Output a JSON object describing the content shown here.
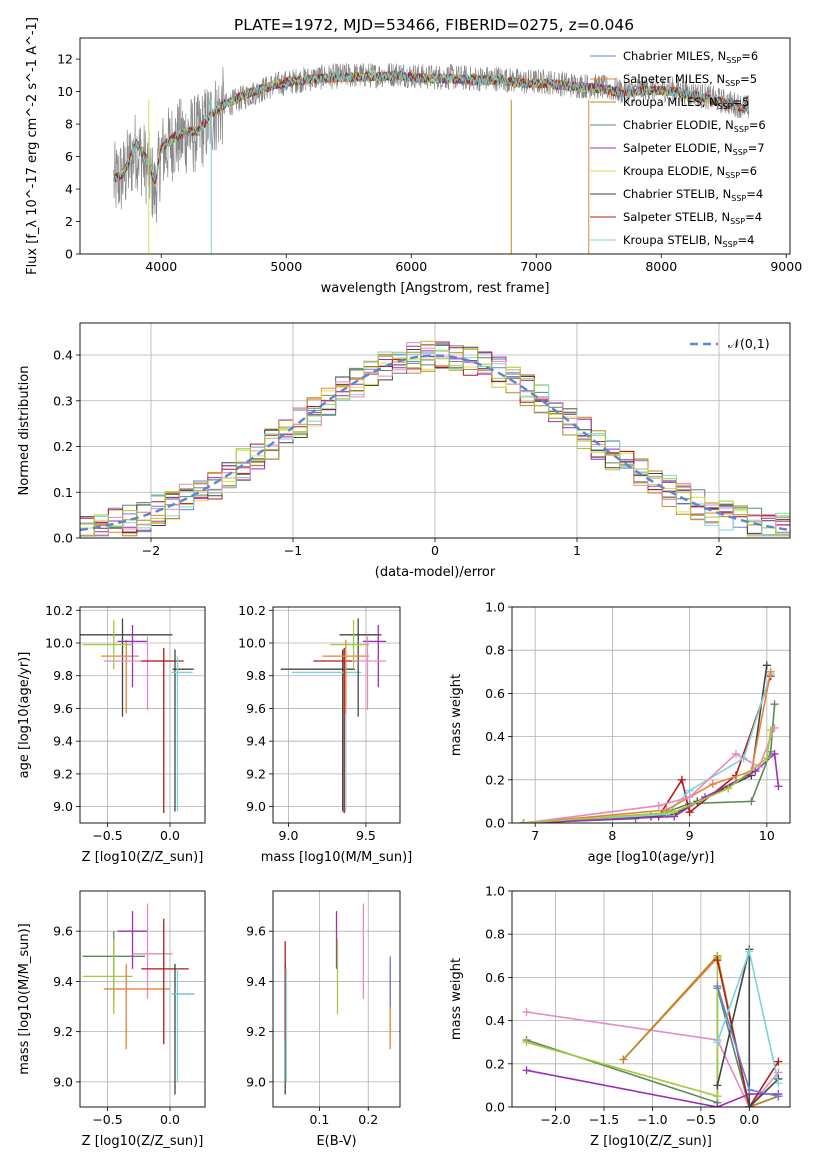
{
  "figure": {
    "title": "PLATE=1972, MJD=53466, FIBERID=0275, z=0.046"
  },
  "colors": [
    "#6a7fdc",
    "#e8823a",
    "#b88a1f",
    "#5c8a5e",
    "#9b2fb7",
    "#d6e04c",
    "#444444",
    "#b01c1c",
    "#7ad6d6",
    "#e78ac3",
    "#a4c93a"
  ],
  "chart_data": [
    {
      "type": "line",
      "panel": "spectrum",
      "xlabel": "wavelength [Angstrom, rest frame]",
      "ylabel": "Flux [f_λ 10^-17 erg cm^-2 s^-1 A^-1]",
      "xlim": [
        3350,
        9030
      ],
      "ylim": [
        0,
        13.3
      ],
      "xticks": [
        4000,
        5000,
        6000,
        7000,
        8000,
        9000
      ],
      "yticks": [
        0,
        2,
        4,
        6,
        8,
        10,
        12
      ],
      "legend_position": "right",
      "legend": [
        {
          "label": "Chabrier MILES, N_SSP=6",
          "color": "#6a7fdc"
        },
        {
          "label": "Salpeter MILES, N_SSP=5",
          "color": "#e8823a"
        },
        {
          "label": "Kroupa MILES, N_SSP=5",
          "color": "#b88a1f"
        },
        {
          "label": "Chabrier ELODIE, N_SSP=6",
          "color": "#5c8a5e"
        },
        {
          "label": "Salpeter ELODIE, N_SSP=7",
          "color": "#9b2fb7"
        },
        {
          "label": "Kroupa ELODIE, N_SSP=6",
          "color": "#d6e04c"
        },
        {
          "label": "Chabrier STELIB, N_SSP=4",
          "color": "#444444"
        },
        {
          "label": "Salpeter STELIB, N_SSP=4",
          "color": "#b01c1c"
        },
        {
          "label": "Kroupa STELIB, N_SSP=4",
          "color": "#7ad6d6"
        }
      ],
      "series": [
        {
          "name": "data",
          "color": "#888888",
          "x": [
            3620,
            3700,
            3800,
            3900,
            3950,
            4000,
            4100,
            4200,
            4300,
            4400,
            4500,
            4700,
            4900,
            5100,
            5300,
            5500,
            5700,
            5900,
            6100,
            6300,
            6500,
            6700,
            6900,
            7100,
            7300,
            7500,
            7700,
            7900,
            8100,
            8300,
            8500,
            8700
          ],
          "y": [
            4.4,
            4.8,
            6.5,
            5.2,
            3.8,
            6.2,
            7.0,
            7.3,
            7.4,
            8.4,
            9.1,
            9.8,
            10.4,
            10.7,
            10.9,
            11.0,
            11.0,
            11.1,
            10.9,
            10.9,
            10.8,
            10.8,
            10.6,
            10.6,
            10.4,
            10.3,
            10.0,
            10.2,
            10.1,
            9.8,
            9.4,
            9.0
          ]
        },
        {
          "name": "model",
          "color": "#7ad6d6",
          "x": [
            3620,
            3700,
            3800,
            3900,
            3950,
            4000,
            4100,
            4200,
            4300,
            4400,
            4500,
            4700,
            4900,
            5100,
            5300,
            5500,
            5700,
            5900,
            6100,
            6300,
            6500,
            6700,
            6900,
            7100,
            7300,
            7500,
            7700,
            7900,
            8100,
            8300,
            8500,
            8700
          ],
          "y": [
            4.6,
            5.0,
            6.8,
            5.6,
            4.4,
            6.5,
            7.2,
            7.5,
            7.6,
            8.6,
            9.2,
            9.9,
            10.4,
            10.7,
            10.8,
            10.9,
            10.9,
            11.0,
            10.8,
            10.8,
            10.7,
            10.7,
            10.5,
            10.5,
            10.3,
            10.2,
            9.9,
            10.1,
            10.0,
            9.7,
            9.3,
            8.9
          ]
        }
      ]
    },
    {
      "type": "line",
      "panel": "residuals",
      "xlabel": "(data-model)/error",
      "ylabel": "Normed distribution",
      "xlim": [
        -2.5,
        2.5
      ],
      "ylim": [
        0,
        0.47
      ],
      "xticks": [
        -2,
        -1,
        0,
        1,
        2
      ],
      "yticks": [
        0.0,
        0.1,
        0.2,
        0.3,
        0.4
      ],
      "legend_position": "top-right",
      "legend_label": "𝒩(0,1)",
      "grid": true
    },
    {
      "type": "scatter",
      "panel": "age_vs_Z",
      "xlabel": "Z [log10(Z/Z_sun)]",
      "ylabel": "age [log10(age/yr)]",
      "xlim": [
        -0.72,
        0.28
      ],
      "ylim": [
        8.9,
        10.22
      ],
      "xticks": [
        -0.5,
        0.0
      ],
      "yticks": [
        9.0,
        9.2,
        9.4,
        9.6,
        9.8,
        10.0,
        10.2
      ],
      "grid": true,
      "points": [
        {
          "x": -0.38,
          "y": 10.05,
          "xerr": [
            0.36,
            0.4
          ],
          "yerr": [
            0.5,
            0.1
          ],
          "c": "#444444"
        },
        {
          "x": -0.35,
          "y": 9.92,
          "xerr": [
            0.2,
            0.1
          ],
          "yerr": [
            0.35,
            0.1
          ],
          "c": "#e8823a"
        },
        {
          "x": -0.3,
          "y": 10.01,
          "xerr": [
            0.12,
            0.12
          ],
          "yerr": [
            0.28,
            0.1
          ],
          "c": "#9b2fb7"
        },
        {
          "x": -0.45,
          "y": 9.99,
          "xerr": [
            0.25,
            0.15
          ],
          "yerr": [
            0.15,
            0.15
          ],
          "c": "#a4c93a"
        },
        {
          "x": -0.18,
          "y": 9.89,
          "xerr": [
            0.35,
            0.2
          ],
          "yerr": [
            0.3,
            0.15
          ],
          "c": "#e78ac3"
        },
        {
          "x": -0.05,
          "y": 9.89,
          "xerr": [
            0.18,
            0.16
          ],
          "yerr": [
            0.93,
            0.08
          ],
          "c": "#b01c1c"
        },
        {
          "x": 0.04,
          "y": 9.84,
          "xerr": [
            0.02,
            0.15
          ],
          "yerr": [
            0.87,
            0.12
          ],
          "c": "#444444"
        },
        {
          "x": 0.06,
          "y": 9.82,
          "xerr": [
            0.05,
            0.12
          ],
          "yerr": [
            0.85,
            0.1
          ],
          "c": "#7ad6d6"
        }
      ]
    },
    {
      "type": "scatter",
      "panel": "age_vs_mass",
      "xlabel": "mass [log10(M/M_sun)]",
      "ylabel": "",
      "xlim": [
        8.9,
        9.72
      ],
      "ylim": [
        8.9,
        10.22
      ],
      "xticks": [
        9.0,
        9.5
      ],
      "yticks": [
        9.0,
        9.2,
        9.4,
        9.6,
        9.8,
        10.0,
        10.2
      ],
      "grid": true,
      "points": [
        {
          "x": 9.35,
          "y": 9.84,
          "xerr": [
            0.4,
            0.08
          ],
          "yerr": [
            0.87,
            0.12
          ],
          "c": "#444444"
        },
        {
          "x": 9.37,
          "y": 9.82,
          "xerr": [
            0.35,
            0.1
          ],
          "yerr": [
            0.85,
            0.1
          ],
          "c": "#7ad6d6"
        },
        {
          "x": 9.36,
          "y": 9.89,
          "xerr": [
            0.2,
            0.1
          ],
          "yerr": [
            0.93,
            0.08
          ],
          "c": "#b01c1c"
        },
        {
          "x": 9.45,
          "y": 10.05,
          "xerr": [
            0.12,
            0.15
          ],
          "yerr": [
            0.5,
            0.1
          ],
          "c": "#444444"
        },
        {
          "x": 9.37,
          "y": 9.92,
          "xerr": [
            0.15,
            0.15
          ],
          "yerr": [
            0.35,
            0.1
          ],
          "c": "#e8823a"
        },
        {
          "x": 9.58,
          "y": 10.01,
          "xerr": [
            0.1,
            0.05
          ],
          "yerr": [
            0.28,
            0.1
          ],
          "c": "#9b2fb7"
        },
        {
          "x": 9.42,
          "y": 9.99,
          "xerr": [
            0.15,
            0.1
          ],
          "yerr": [
            0.15,
            0.15
          ],
          "c": "#a4c93a"
        },
        {
          "x": 9.51,
          "y": 9.89,
          "xerr": [
            0.1,
            0.12
          ],
          "yerr": [
            0.3,
            0.15
          ],
          "c": "#e78ac3"
        }
      ]
    },
    {
      "type": "line",
      "panel": "weight_vs_age",
      "xlabel": "age [log10(age/yr)]",
      "ylabel": "mass weight",
      "xlim": [
        6.7,
        10.3
      ],
      "ylim": [
        0,
        1.0
      ],
      "xticks": [
        7,
        8,
        9,
        10
      ],
      "yticks": [
        0.0,
        0.2,
        0.4,
        0.6,
        0.8,
        1.0
      ],
      "grid": true,
      "series": [
        {
          "c": "#5c8a5e",
          "x": [
            6.85,
            8.3,
            8.7,
            9.0,
            9.8,
            10.05,
            10.1
          ],
          "y": [
            0.0,
            0.02,
            0.05,
            0.09,
            0.1,
            0.33,
            0.55
          ]
        },
        {
          "c": "#b01c1c",
          "x": [
            6.85,
            8.6,
            8.9,
            9.0,
            9.6,
            10.05
          ],
          "y": [
            0.0,
            0.03,
            0.2,
            0.05,
            0.22,
            0.68
          ]
        },
        {
          "c": "#444444",
          "x": [
            6.85,
            8.5,
            8.8,
            9.1,
            9.8,
            10.0
          ],
          "y": [
            0.0,
            0.03,
            0.04,
            0.1,
            0.22,
            0.73
          ]
        },
        {
          "c": "#7ad6d6",
          "x": [
            6.85,
            8.7,
            9.0,
            9.7,
            10.05
          ],
          "y": [
            0.0,
            0.04,
            0.15,
            0.3,
            0.69
          ]
        },
        {
          "c": "#e8823a",
          "x": [
            6.85,
            8.7,
            9.3,
            9.8,
            10.05
          ],
          "y": [
            0.0,
            0.06,
            0.18,
            0.24,
            0.7
          ]
        },
        {
          "c": "#9b2fb7",
          "x": [
            6.85,
            8.8,
            9.2,
            9.85,
            10.1,
            10.15
          ],
          "y": [
            0.0,
            0.03,
            0.12,
            0.24,
            0.32,
            0.17
          ]
        },
        {
          "c": "#e78ac3",
          "x": [
            6.85,
            8.6,
            9.0,
            9.6,
            9.9,
            10.1
          ],
          "y": [
            0.0,
            0.08,
            0.12,
            0.32,
            0.26,
            0.44
          ]
        },
        {
          "c": "#a4c93a",
          "x": [
            6.85,
            8.8,
            9.5,
            10.0,
            10.05
          ],
          "y": [
            0.0,
            0.05,
            0.16,
            0.3,
            0.43
          ]
        }
      ]
    },
    {
      "type": "scatter",
      "panel": "mass_vs_Z",
      "xlabel": "Z [log10(Z/Z_sun)]",
      "ylabel": "mass [log10(M/M_sun)]",
      "xlim": [
        -0.72,
        0.28
      ],
      "ylim": [
        8.9,
        9.76
      ],
      "xticks": [
        -0.5,
        0.0
      ],
      "yticks": [
        9.0,
        9.2,
        9.4,
        9.6
      ],
      "grid": true,
      "points": [
        {
          "x": -0.45,
          "y": 9.5,
          "xerr": [
            0.25,
            0.25
          ],
          "yerr": [
            0.18,
            0.1
          ],
          "c": "#5c8a5e"
        },
        {
          "x": -0.3,
          "y": 9.6,
          "xerr": [
            0.12,
            0.12
          ],
          "yerr": [
            0.15,
            0.08
          ],
          "c": "#9b2fb7"
        },
        {
          "x": -0.45,
          "y": 9.42,
          "xerr": [
            0.25,
            0.15
          ],
          "yerr": [
            0.15,
            0.15
          ],
          "c": "#a4c93a"
        },
        {
          "x": -0.18,
          "y": 9.51,
          "xerr": [
            0.12,
            0.2
          ],
          "yerr": [
            0.18,
            0.2
          ],
          "c": "#e78ac3"
        },
        {
          "x": -0.35,
          "y": 9.37,
          "xerr": [
            0.18,
            0.35
          ],
          "yerr": [
            0.24,
            0.1
          ],
          "c": "#e8823a"
        },
        {
          "x": -0.05,
          "y": 9.45,
          "xerr": [
            0.18,
            0.2
          ],
          "yerr": [
            0.3,
            0.2
          ],
          "c": "#b01c1c"
        },
        {
          "x": 0.04,
          "y": 9.35,
          "xerr": [
            0.02,
            0.15
          ],
          "yerr": [
            0.4,
            0.12
          ],
          "c": "#444444"
        },
        {
          "x": 0.06,
          "y": 9.35,
          "xerr": [
            0.05,
            0.14
          ],
          "yerr": [
            0.35,
            0.1
          ],
          "c": "#7ad6d6"
        }
      ]
    },
    {
      "type": "scatter",
      "panel": "mass_vs_EBV",
      "xlabel": "E(B-V)",
      "ylabel": "",
      "xlim": [
        0.005,
        0.265
      ],
      "ylim": [
        8.9,
        9.76
      ],
      "xticks": [
        0.1,
        0.2
      ],
      "yticks": [
        9.0,
        9.2,
        9.4,
        9.6
      ],
      "grid": true,
      "points": [
        {
          "x": 0.03,
          "y": 9.35,
          "yerr": [
            0.4,
            0.12
          ],
          "c": "#444444"
        },
        {
          "x": 0.03,
          "y": 9.36,
          "yerr": [
            0.2,
            0.2
          ],
          "c": "#b01c1c"
        },
        {
          "x": 0.032,
          "y": 9.35,
          "yerr": [
            0.35,
            0.1
          ],
          "c": "#7ad6d6"
        },
        {
          "x": 0.135,
          "y": 9.6,
          "yerr": [
            0.15,
            0.08
          ],
          "c": "#9b2fb7"
        },
        {
          "x": 0.137,
          "y": 9.42,
          "yerr": [
            0.15,
            0.15
          ],
          "c": "#a4c93a"
        },
        {
          "x": 0.19,
          "y": 9.51,
          "yerr": [
            0.18,
            0.2
          ],
          "c": "#e78ac3"
        },
        {
          "x": 0.245,
          "y": 9.37,
          "yerr": [
            0.24,
            0.1
          ],
          "c": "#e8823a"
        },
        {
          "x": 0.245,
          "y": 9.4,
          "yerr": [
            0.1,
            0.1
          ],
          "c": "#6a7fdc"
        }
      ]
    },
    {
      "type": "line",
      "panel": "weight_vs_Z",
      "xlabel": "Z [log10(Z/Z_sun)]",
      "ylabel": "mass weight",
      "xlim": [
        -2.45,
        0.42
      ],
      "ylim": [
        0,
        1.0
      ],
      "xticks": [
        -2.0,
        -1.5,
        -1.0,
        -0.5,
        0.0
      ],
      "yticks": [
        0.0,
        0.2,
        0.4,
        0.6,
        0.8,
        1.0
      ],
      "grid": true,
      "series": [
        {
          "c": "#5c8a5e",
          "x": [
            -2.3,
            -0.33,
            -0.33,
            0.0,
            0.3
          ],
          "y": [
            0.31,
            0.02,
            0.55,
            0.0,
            0.05
          ]
        },
        {
          "c": "#e78ac3",
          "x": [
            -2.3,
            -0.33,
            0.0,
            0.3
          ],
          "y": [
            0.44,
            0.31,
            0.0,
            0.16
          ]
        },
        {
          "c": "#9b2fb7",
          "x": [
            -2.3,
            -0.33,
            0.0,
            0.3
          ],
          "y": [
            0.17,
            0.0,
            0.06,
            0.06
          ]
        },
        {
          "c": "#e8823a",
          "x": [
            -1.3,
            -0.33,
            0.0,
            0.3
          ],
          "y": [
            0.22,
            0.69,
            0.0,
            0.05
          ]
        },
        {
          "c": "#b88a1f",
          "x": [
            -1.3,
            -0.33,
            0.0,
            0.3
          ],
          "y": [
            0.22,
            0.7,
            0.0,
            0.05
          ]
        },
        {
          "c": "#a4c93a",
          "x": [
            -2.3,
            -0.33,
            -0.33,
            0.0
          ],
          "y": [
            0.3,
            0.05,
            0.69,
            0.0
          ]
        },
        {
          "c": "#b01c1c",
          "x": [
            -0.33,
            0.0,
            0.3
          ],
          "y": [
            0.68,
            0.0,
            0.21
          ]
        },
        {
          "c": "#444444",
          "x": [
            -0.33,
            0.0,
            0.0,
            0.3
          ],
          "y": [
            0.1,
            0.73,
            0.0,
            0.13
          ]
        },
        {
          "c": "#7ad6d6",
          "x": [
            -0.33,
            0.0,
            0.3
          ],
          "y": [
            0.3,
            0.72,
            0.11
          ]
        },
        {
          "c": "#6a7fdc",
          "x": [
            -0.33,
            0.0,
            0.3
          ],
          "y": [
            0.56,
            0.08,
            0.05
          ]
        }
      ]
    }
  ]
}
